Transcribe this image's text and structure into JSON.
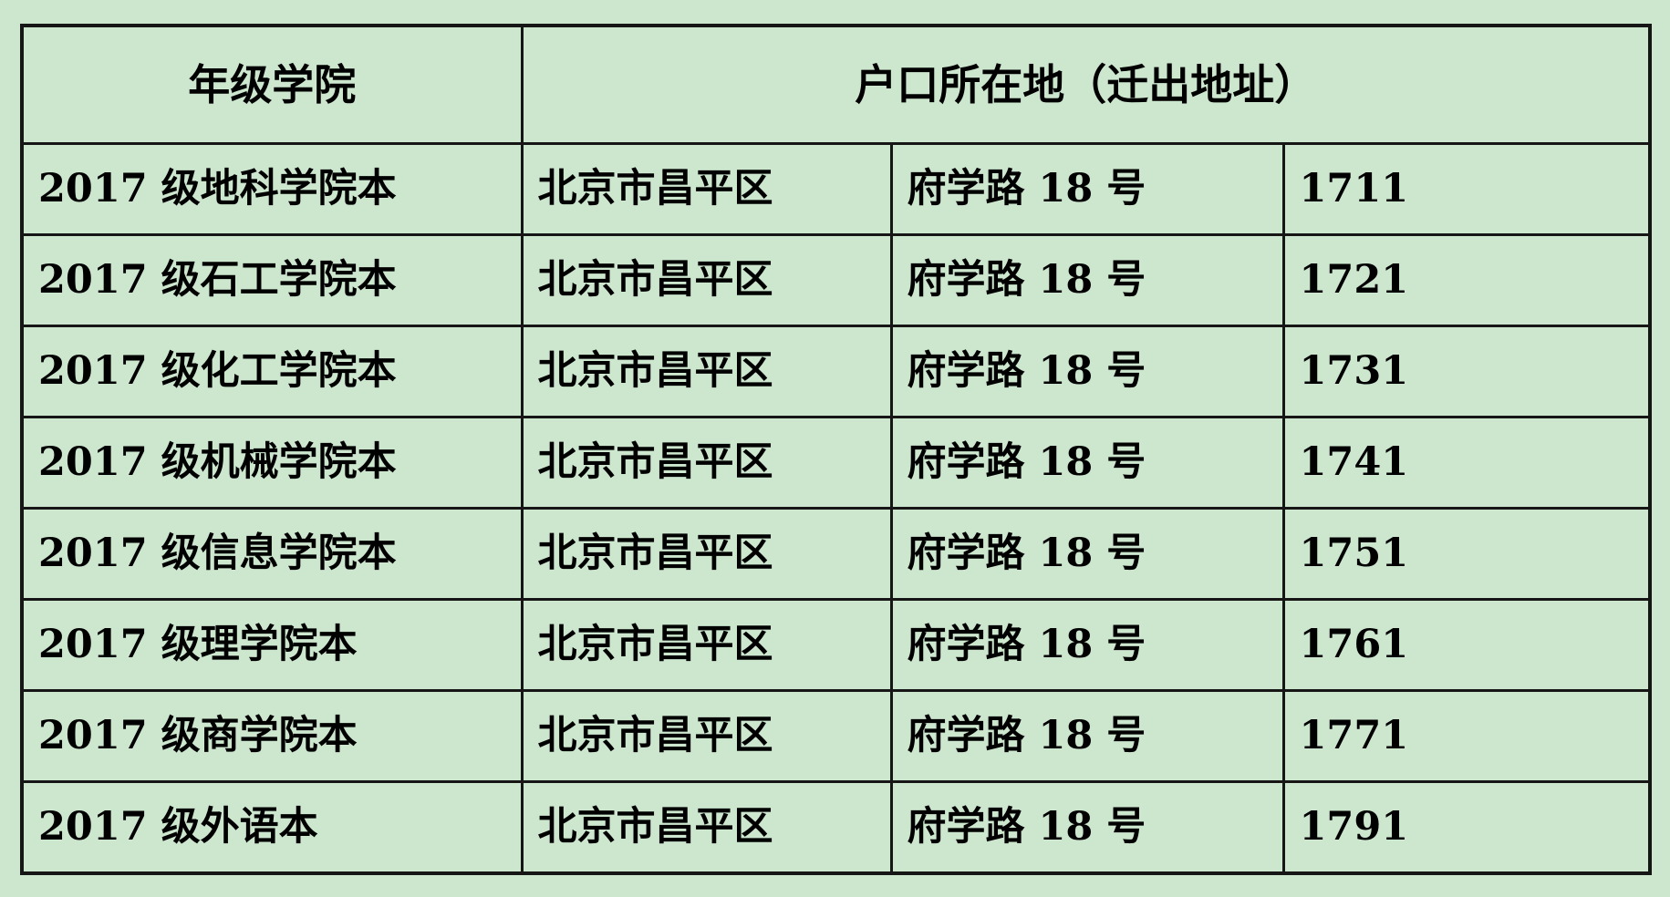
{
  "table": {
    "background_color": "#cde7cf",
    "border_color": "#161616",
    "header": {
      "grade_college": "年级学院",
      "registered_residence": "户口所在地（迁出地址）"
    },
    "rows": [
      {
        "college": "2017 级地科学院本",
        "district": "北京市昌平区",
        "street": "府学路 18 号",
        "code": "1711"
      },
      {
        "college": "2017 级石工学院本",
        "district": "北京市昌平区",
        "street": "府学路 18 号",
        "code": "1721"
      },
      {
        "college": "2017 级化工学院本",
        "district": "北京市昌平区",
        "street": "府学路 18 号",
        "code": "1731"
      },
      {
        "college": "2017 级机械学院本",
        "district": "北京市昌平区",
        "street": "府学路 18 号",
        "code": "1741"
      },
      {
        "college": "2017 级信息学院本",
        "district": "北京市昌平区",
        "street": "府学路 18 号",
        "code": "1751"
      },
      {
        "college": "2017 级理学院本",
        "district": "北京市昌平区",
        "street": "府学路 18 号",
        "code": "1761"
      },
      {
        "college": "2017 级商学院本",
        "district": "北京市昌平区",
        "street": "府学路 18 号",
        "code": "1771"
      },
      {
        "college": "2017 级外语本",
        "district": "北京市昌平区",
        "street": "府学路 18 号",
        "code": "1791"
      }
    ]
  }
}
